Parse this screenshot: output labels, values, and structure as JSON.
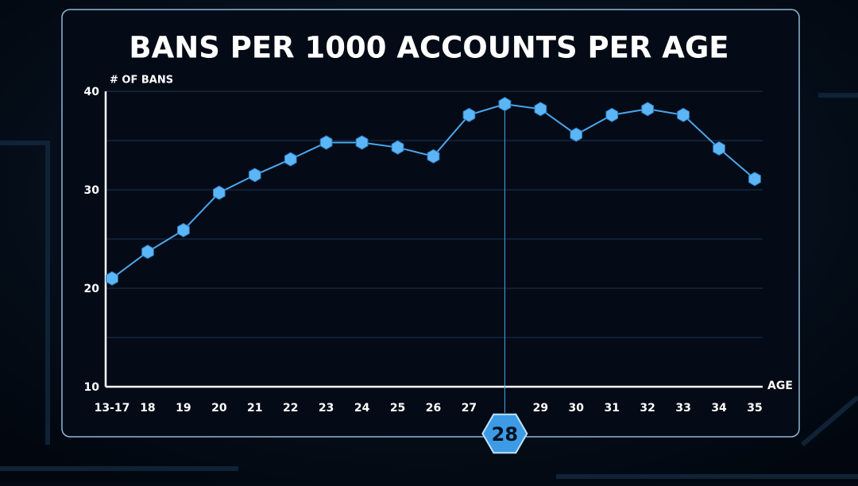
{
  "chart_data": {
    "type": "line",
    "title": "BANS PER 1000 ACCOUNTS PER AGE",
    "y_label": "# OF BANS",
    "x_label": "AGE",
    "categories": [
      "13-17",
      "18",
      "19",
      "20",
      "21",
      "22",
      "23",
      "24",
      "25",
      "26",
      "27",
      "28",
      "29",
      "30",
      "31",
      "32",
      "33",
      "34",
      "35"
    ],
    "series": [
      {
        "name": "Bans",
        "color": "#4aa6ee",
        "values": [
          21.0,
          23.7,
          25.9,
          29.7,
          31.5,
          33.1,
          34.8,
          34.8,
          34.3,
          33.4,
          37.6,
          38.7,
          38.2,
          35.6,
          37.6,
          38.2,
          37.6,
          34.2,
          31.1
        ]
      }
    ],
    "ylim": [
      10,
      40
    ],
    "yticks": [
      10,
      20,
      30,
      40
    ],
    "grid": true,
    "highlight_index": 11
  }
}
